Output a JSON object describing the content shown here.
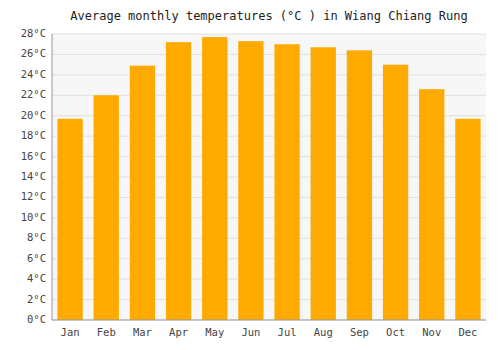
{
  "chart_data": {
    "type": "bar",
    "title": "Average monthly temperatures (°C ) in Wiang Chiang Rung",
    "categories": [
      "Jan",
      "Feb",
      "Mar",
      "Apr",
      "May",
      "Jun",
      "Jul",
      "Aug",
      "Sep",
      "Oct",
      "Nov",
      "Dec"
    ],
    "values": [
      19.7,
      22.0,
      24.9,
      27.2,
      27.7,
      27.3,
      27.0,
      26.7,
      26.4,
      25.0,
      22.6,
      19.7
    ],
    "color": "#FFAA00",
    "ylim": [
      0,
      28
    ],
    "yticks": [
      {
        "value": 0,
        "label": "0°C"
      },
      {
        "value": 2,
        "label": "2°C"
      },
      {
        "value": 4,
        "label": "4°C"
      },
      {
        "value": 6,
        "label": "6°C"
      },
      {
        "value": 8,
        "label": "8°C"
      },
      {
        "value": 10,
        "label": "10°C"
      },
      {
        "value": 12,
        "label": "12°C"
      },
      {
        "value": 14,
        "label": "14°C"
      },
      {
        "value": 16,
        "label": "16°C"
      },
      {
        "value": 18,
        "label": "18°C"
      },
      {
        "value": 20,
        "label": "20°C"
      },
      {
        "value": 22,
        "label": "22°C"
      },
      {
        "value": 24,
        "label": "24°C"
      },
      {
        "value": 26,
        "label": "26°C"
      },
      {
        "value": 28,
        "label": "28°C"
      }
    ],
    "grid": true
  }
}
